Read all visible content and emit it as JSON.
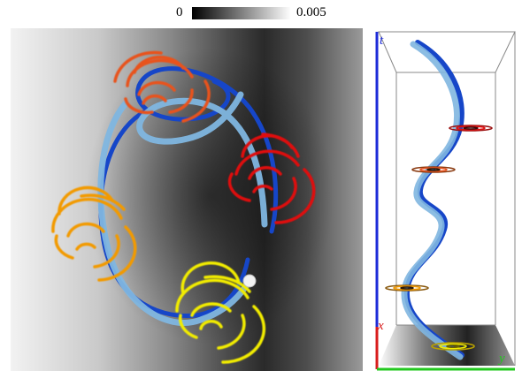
{
  "colorbar": {
    "min_label": "0",
    "max_label": "0.005",
    "colormap": [
      "#000000",
      "#ffffff"
    ]
  },
  "left_view": {
    "tube_colors": {
      "light": "#7fb6e0",
      "dark": "#1646c8"
    },
    "probe_color": "#f2f2f2",
    "swirls": [
      {
        "name": "orange",
        "color": "#e8521e"
      },
      {
        "name": "red",
        "color": "#e01010"
      },
      {
        "name": "amber",
        "color": "#f29a00"
      },
      {
        "name": "yellow",
        "color": "#f2ec00"
      }
    ]
  },
  "right_view": {
    "axes": {
      "t": {
        "label": "t",
        "color": "#1d2bd8"
      },
      "x": {
        "label": "x",
        "color": "#d81d1d"
      },
      "y": {
        "label": "y",
        "color": "#22c81e"
      }
    }
  }
}
